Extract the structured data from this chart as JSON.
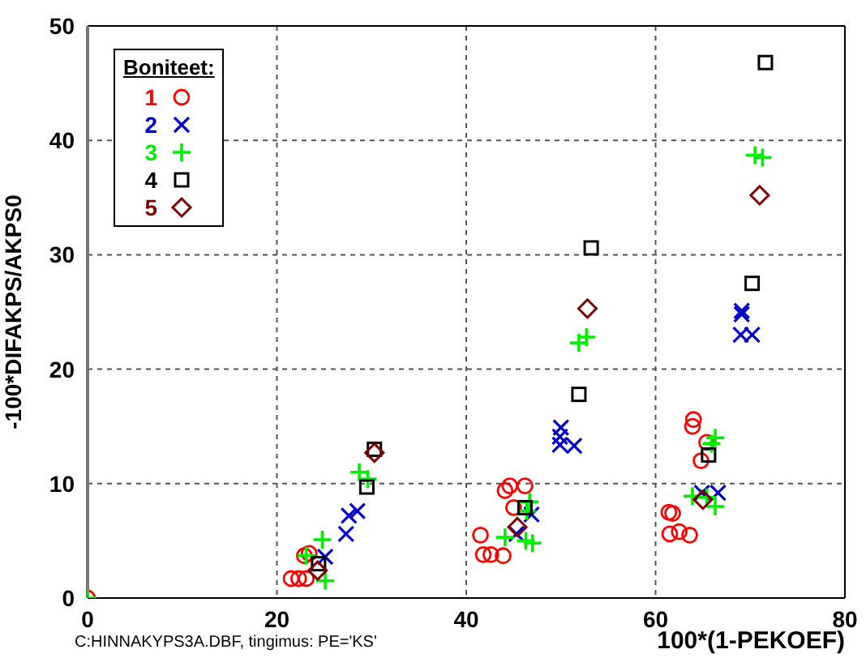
{
  "chart_data": {
    "type": "scatter",
    "xlabel": "100*(1-PEKOEF)",
    "ylabel": "-100*DIFAKPS/AKPS0",
    "legend_title": "Boniteet:",
    "annotations": [
      "C:HINNAKYPS3A.DBF, tingimus: PE='KS'"
    ],
    "xlim": [
      0,
      80
    ],
    "xticks": [
      0,
      20,
      40,
      60,
      80
    ],
    "ylim": [
      0,
      50
    ],
    "yticks": [
      0,
      10,
      20,
      30,
      40,
      50
    ],
    "grid": true,
    "legend": "top left",
    "series": [
      {
        "name": "1",
        "color": "#ff0000",
        "marker": "circle",
        "x": [
          0,
          21.5,
          22.3,
          23.1,
          23.4,
          22.9,
          41.5,
          41.8,
          42.6,
          43.9,
          44.1,
          44.6,
          46.2,
          45,
          64,
          63.9,
          65.4,
          64.8,
          61.4,
          61.8,
          61.5,
          62.5,
          63.6
        ],
        "values": [
          0,
          1.7,
          1.7,
          1.7,
          3.9,
          3.7,
          5.5,
          3.8,
          3.8,
          3.7,
          9.4,
          9.8,
          9.8,
          7.9,
          15.6,
          15,
          13.6,
          12,
          7.5,
          7.4,
          5.6,
          5.8,
          5.5
        ]
      },
      {
        "name": "2",
        "color": "#0000cc",
        "marker": "x",
        "x": [
          25.1,
          27.3,
          27.6,
          28.5,
          50,
          49.9,
          49.9,
          51.4,
          46.9,
          45.3,
          69.1,
          69.1,
          69,
          70.2,
          66.6,
          64.9
        ],
        "values": [
          3.6,
          5.6,
          7.2,
          7.6,
          14.9,
          14.1,
          13.4,
          13.3,
          7.3,
          5.6,
          24.8,
          25.1,
          23,
          23,
          9.2,
          9.2
        ]
      },
      {
        "name": "3",
        "color": "#00ee00",
        "marker": "cross",
        "x": [
          0,
          24.8,
          25.1,
          23.1,
          28.7,
          29.6,
          51.9,
          52.7,
          46.7,
          46.4,
          44.1,
          46.3,
          47,
          66.3,
          65.9,
          63.9,
          65.4,
          66.3,
          70.5,
          71.3
        ],
        "values": [
          0,
          5.1,
          1.5,
          3.7,
          11,
          10.4,
          22.3,
          22.8,
          8.4,
          7.6,
          5.3,
          5,
          4.8,
          14,
          13.5,
          8.9,
          8.8,
          8,
          38.7,
          38.5
        ]
      },
      {
        "name": "4",
        "color": "#000000",
        "marker": "square",
        "x": [
          24.4,
          29.5,
          30.3,
          53.2,
          51.9,
          70.2,
          65.6,
          46.2,
          71.6
        ],
        "values": [
          3,
          9.7,
          13,
          30.6,
          17.8,
          27.5,
          12.5,
          7.9,
          46.8
        ]
      },
      {
        "name": "5",
        "color": "#800000",
        "marker": "diamond",
        "x": [
          24.3,
          30.3,
          52.8,
          45.4,
          65,
          71
        ],
        "values": [
          2.4,
          12.7,
          25.3,
          6.2,
          8.6,
          35.2
        ]
      }
    ]
  }
}
